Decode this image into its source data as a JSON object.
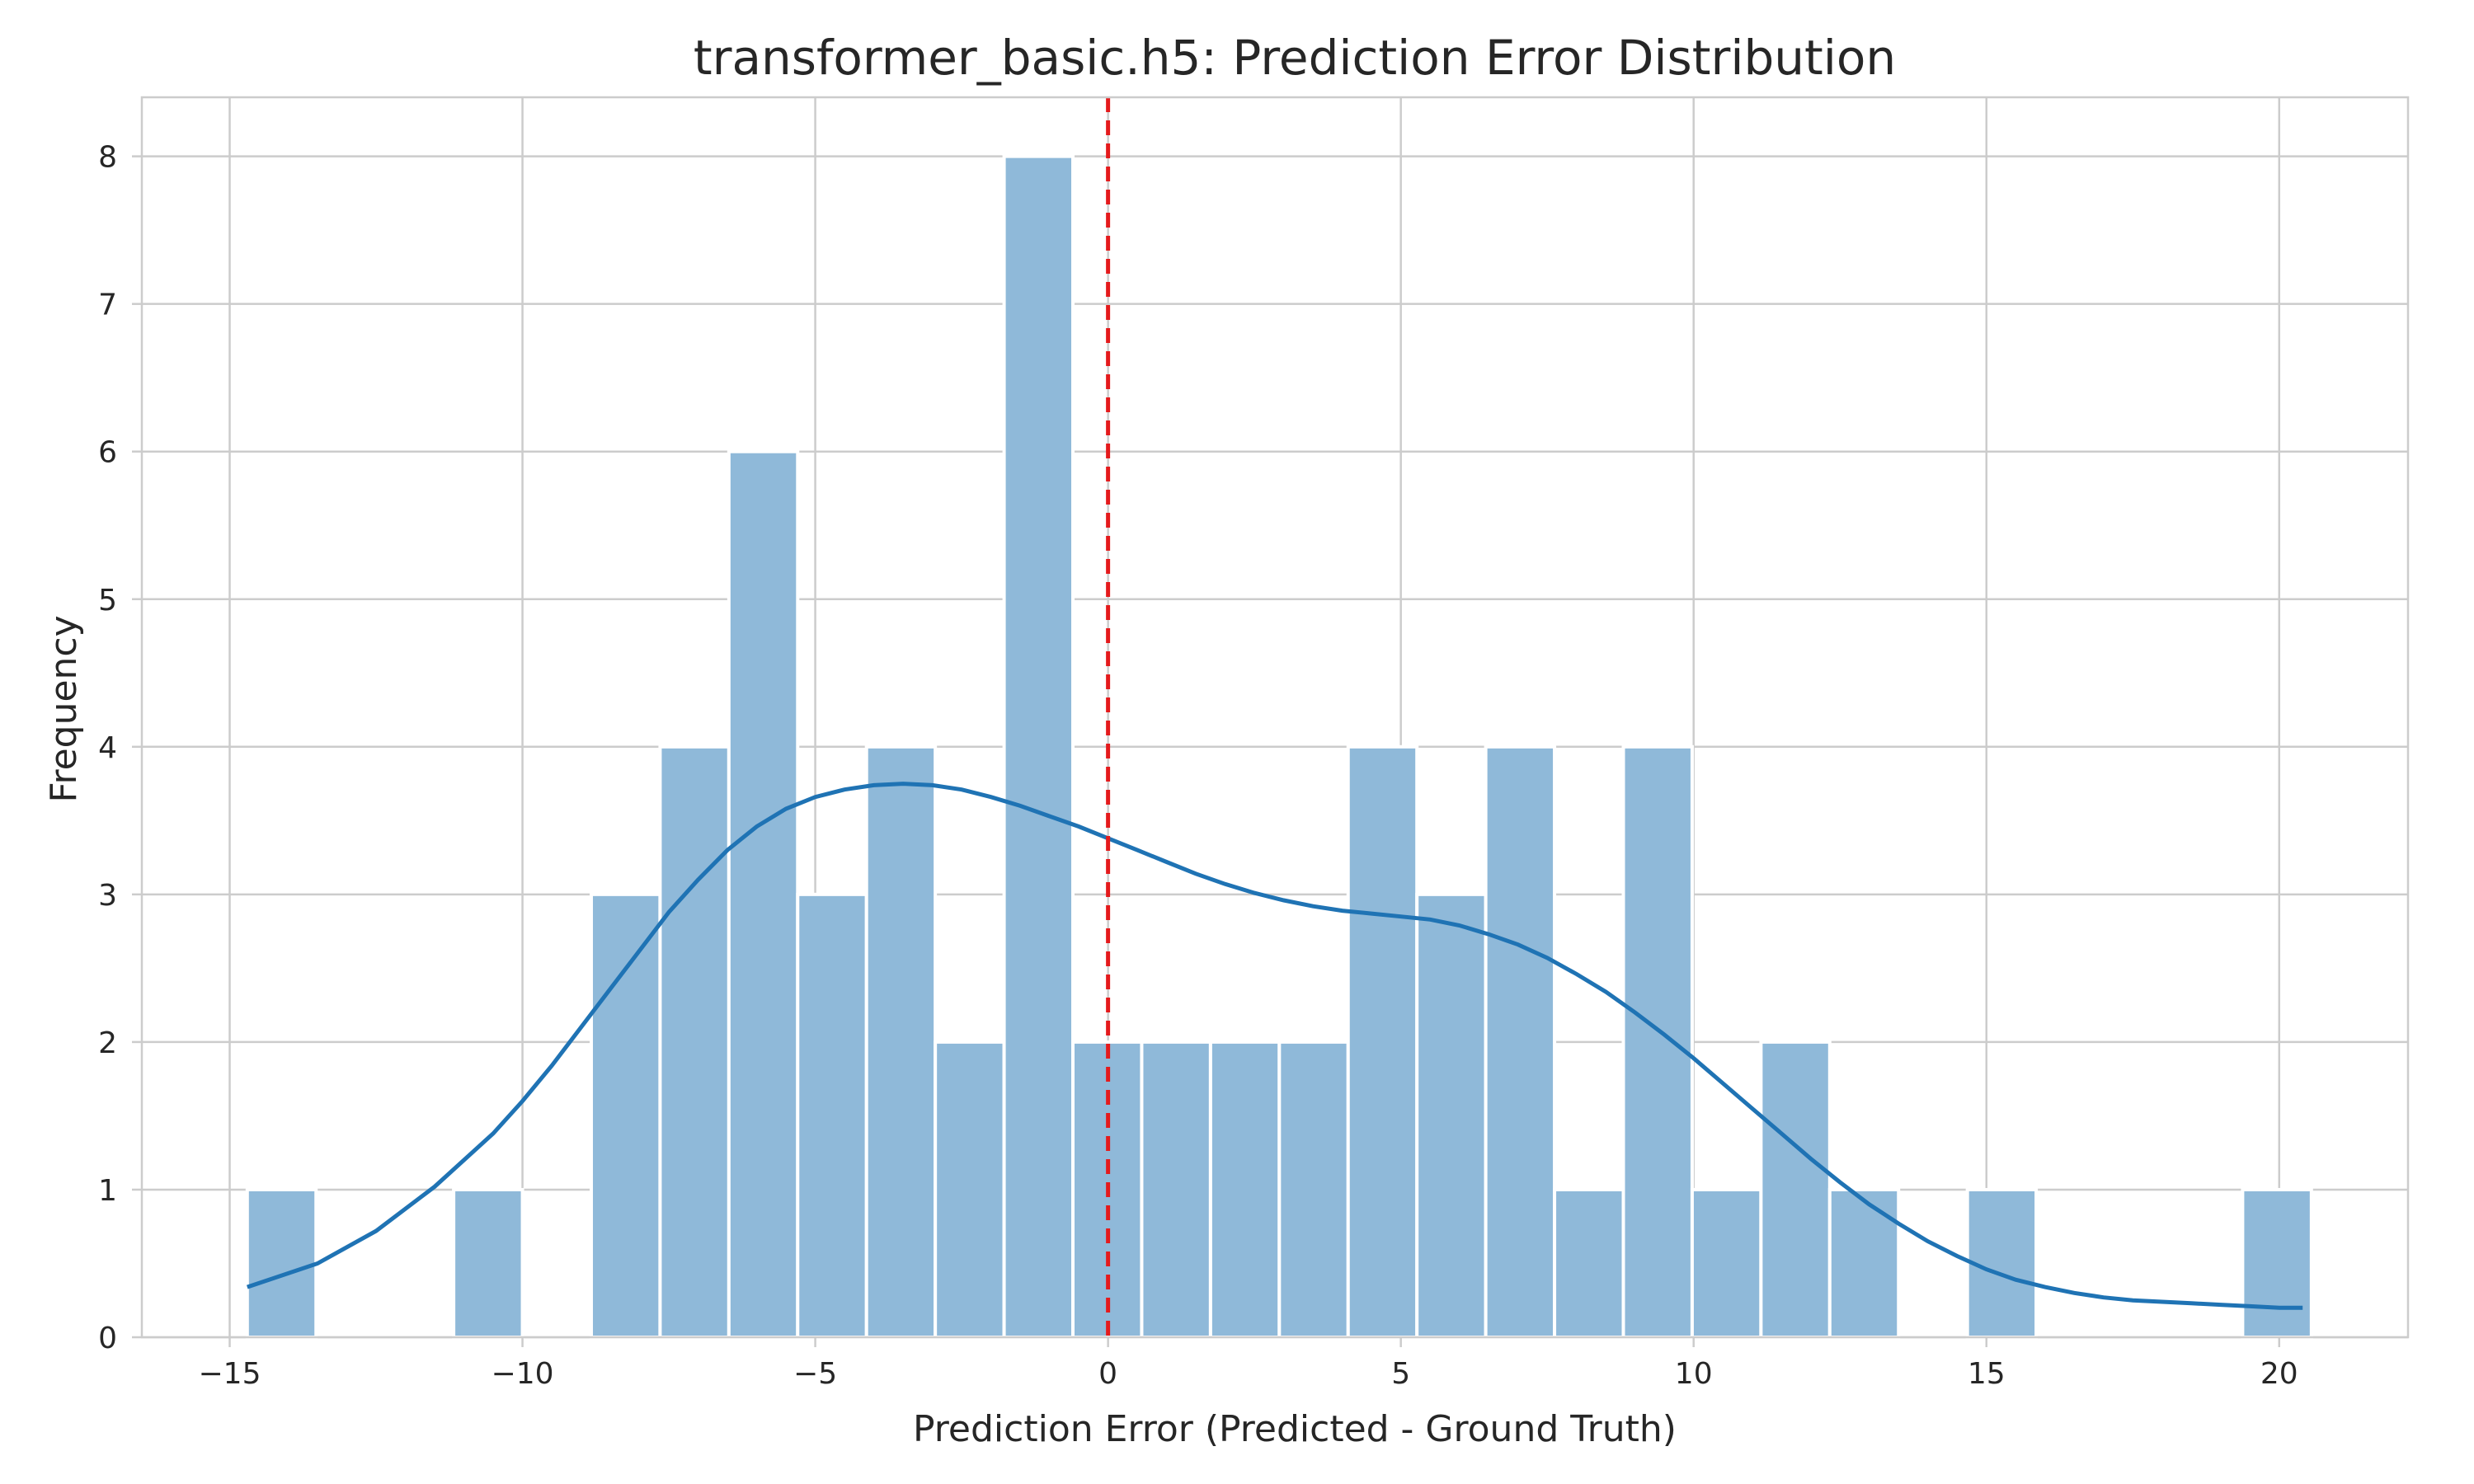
{
  "chart_data": {
    "type": "bar",
    "title": "transformer_basic.h5: Prediction Error Distribution",
    "xlabel": "Prediction Error (Predicted - Ground Truth)",
    "ylabel": "Frequency",
    "xlim": [
      -16.5,
      22.2
    ],
    "ylim": [
      0,
      8.4
    ],
    "xticks": [
      -15,
      -10,
      -5,
      0,
      5,
      10,
      15,
      20
    ],
    "xtick_labels": [
      "−15",
      "−10",
      "−5",
      "0",
      "5",
      "10",
      "15",
      "20"
    ],
    "yticks": [
      0,
      1,
      2,
      3,
      4,
      5,
      6,
      7,
      8
    ],
    "ytick_labels": [
      "0",
      "1",
      "2",
      "3",
      "4",
      "5",
      "6",
      "7",
      "8"
    ],
    "grid": true,
    "bins": {
      "start": -14.7,
      "width": 1.175,
      "counts": [
        1,
        0,
        0,
        1,
        0,
        3,
        4,
        6,
        3,
        4,
        2,
        8,
        2,
        2,
        2,
        2,
        4,
        3,
        4,
        1,
        4,
        1,
        2,
        1,
        0,
        1,
        0,
        0,
        0,
        1
      ]
    },
    "kde": {
      "x": [
        -14.7,
        -13.5,
        -12.5,
        -11.5,
        -10.5,
        -10,
        -9.5,
        -9,
        -8.5,
        -8,
        -7.5,
        -7,
        -6.5,
        -6,
        -5.5,
        -5,
        -4.5,
        -4,
        -3.5,
        -3,
        -2.5,
        -2,
        -1.5,
        -1,
        -0.5,
        0,
        0.5,
        1,
        1.5,
        2,
        2.5,
        3,
        3.5,
        4,
        4.5,
        5,
        5.5,
        6,
        6.5,
        7,
        7.5,
        8,
        8.5,
        9,
        9.5,
        10,
        10.5,
        11,
        11.5,
        12,
        12.5,
        13,
        13.5,
        14,
        14.5,
        15,
        15.5,
        16,
        16.5,
        17,
        17.5,
        18,
        18.5,
        19,
        19.5,
        20,
        20.4
      ],
      "y": [
        0.34,
        0.5,
        0.72,
        1.02,
        1.38,
        1.6,
        1.84,
        2.1,
        2.36,
        2.62,
        2.88,
        3.1,
        3.3,
        3.46,
        3.58,
        3.66,
        3.71,
        3.74,
        3.75,
        3.74,
        3.71,
        3.66,
        3.6,
        3.53,
        3.46,
        3.38,
        3.3,
        3.22,
        3.14,
        3.07,
        3.01,
        2.96,
        2.92,
        2.89,
        2.87,
        2.85,
        2.83,
        2.79,
        2.73,
        2.66,
        2.57,
        2.46,
        2.34,
        2.2,
        2.05,
        1.89,
        1.72,
        1.55,
        1.38,
        1.21,
        1.05,
        0.9,
        0.77,
        0.65,
        0.55,
        0.46,
        0.39,
        0.34,
        0.3,
        0.27,
        0.25,
        0.24,
        0.23,
        0.22,
        0.21,
        0.2,
        0.2
      ]
    },
    "reference_line": {
      "x": 0,
      "color": "#e41a1c",
      "style": "dashed"
    },
    "colors": {
      "bar": "#8fb9d9",
      "kde": "#1f73b4",
      "grid": "#cccccc"
    }
  }
}
